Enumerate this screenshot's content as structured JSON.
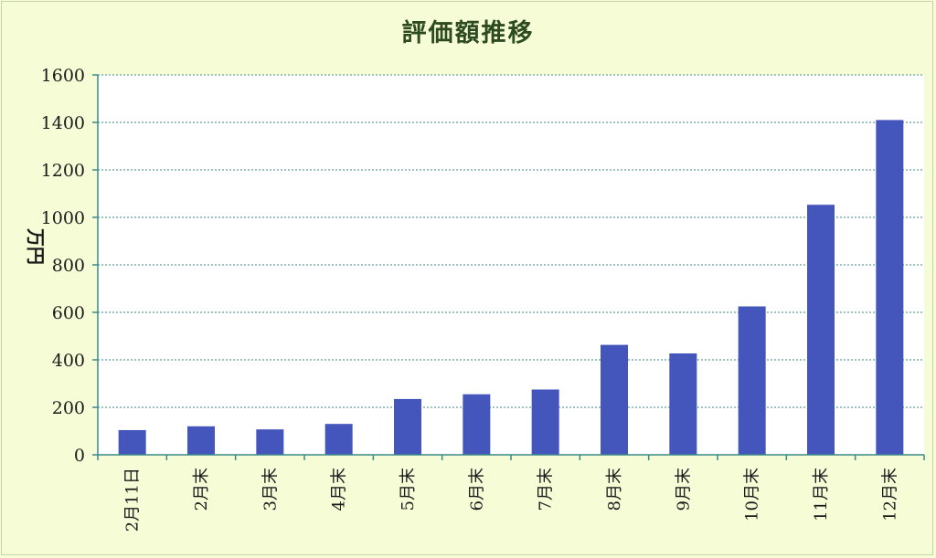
{
  "chart_data": {
    "type": "bar",
    "title": "評価額推移",
    "ylabel": "万円",
    "xlabel": "",
    "categories": [
      "2月11日",
      "2月末",
      "3月末",
      "4月末",
      "5月末",
      "6月末",
      "7月末",
      "8月末",
      "9月末",
      "10月末",
      "11月末",
      "12月末"
    ],
    "values": [
      104,
      120,
      107,
      130,
      235,
      255,
      275,
      463,
      427,
      625,
      1053,
      1410
    ],
    "ylim": [
      0,
      1600
    ],
    "yticks": [
      0,
      200,
      400,
      600,
      800,
      1000,
      1200,
      1400,
      1600
    ],
    "grid": true,
    "legend": "none",
    "colors": {
      "bar": "#4455bb",
      "plot_background": "#ffffff",
      "page_background": "#f5fcd6",
      "gridline": "#3a8a8a",
      "axis": "#3a8a8a"
    }
  }
}
